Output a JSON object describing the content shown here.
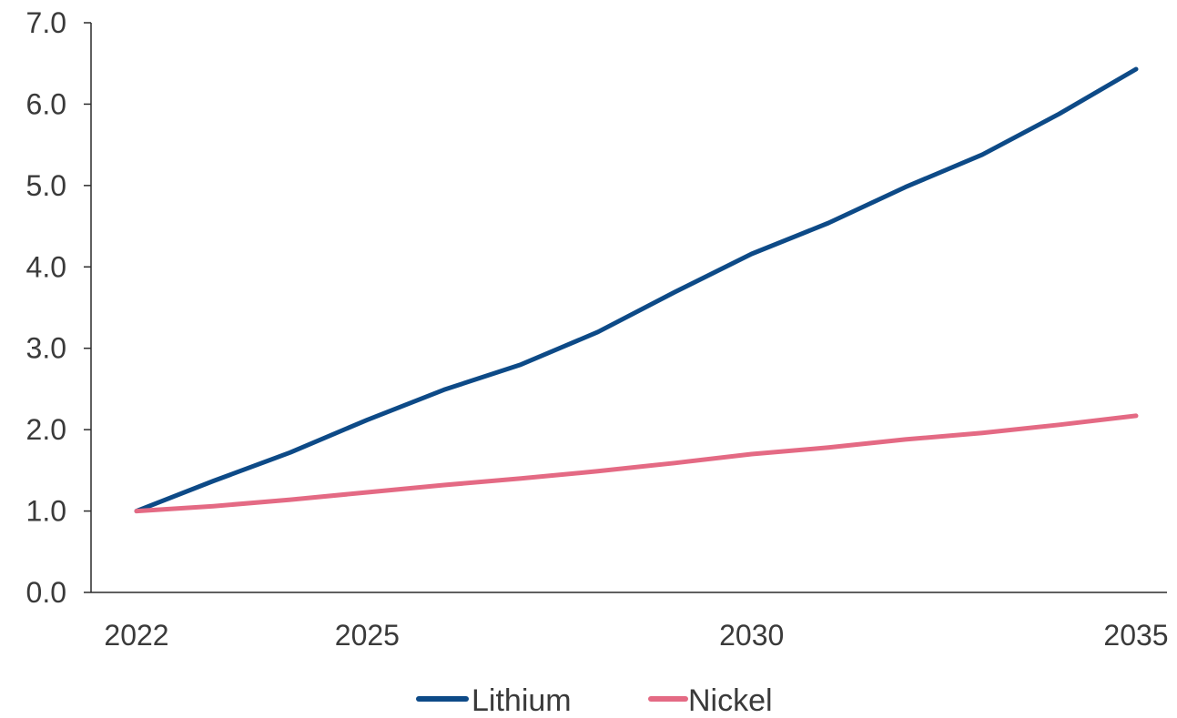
{
  "chart_data": {
    "type": "line",
    "title": "",
    "xlabel": "",
    "ylabel": "",
    "x": [
      2022,
      2023,
      2024,
      2025,
      2026,
      2027,
      2028,
      2029,
      2030,
      2031,
      2032,
      2033,
      2034,
      2035
    ],
    "x_ticks": [
      "2022",
      "2025",
      "2030",
      "2035"
    ],
    "x_tick_values": [
      2022,
      2025,
      2030,
      2035
    ],
    "xlim": [
      2022,
      2035
    ],
    "y_ticks": [
      "0.0",
      "1.0",
      "2.0",
      "3.0",
      "4.0",
      "5.0",
      "6.0",
      "7.0"
    ],
    "y_tick_values": [
      0,
      1,
      2,
      3,
      4,
      5,
      6,
      7
    ],
    "ylim": [
      0,
      7
    ],
    "grid": false,
    "legend_position": "bottom",
    "series": [
      {
        "name": "Lithium",
        "color": "#0d4a87",
        "values": [
          1.0,
          1.37,
          1.72,
          2.12,
          2.49,
          2.8,
          3.2,
          3.69,
          4.16,
          4.54,
          4.98,
          5.38,
          5.88,
          6.43
        ]
      },
      {
        "name": "Nickel",
        "color": "#e46a84",
        "values": [
          1.0,
          1.06,
          1.14,
          1.23,
          1.32,
          1.4,
          1.49,
          1.59,
          1.7,
          1.78,
          1.88,
          1.96,
          2.06,
          2.17
        ]
      }
    ]
  }
}
